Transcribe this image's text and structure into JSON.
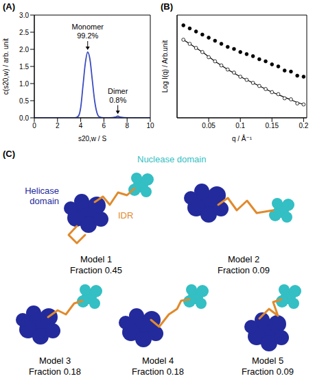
{
  "chart_data": [
    {
      "label": "(A)",
      "type": "line",
      "x_label": "s20,w / S",
      "y_label": "c(s20,w) / arb. unit",
      "x": [
        0,
        0.5,
        1,
        1.5,
        2,
        2.5,
        3,
        3.5,
        3.8,
        4.0,
        4.2,
        4.4,
        4.6,
        4.8,
        5.0,
        5.2,
        5.4,
        5.6,
        6,
        6.5,
        7.0,
        7.2,
        7.4,
        8,
        9,
        10
      ],
      "values": [
        0,
        0,
        0,
        0,
        0,
        0,
        0,
        0,
        0.05,
        0.3,
        0.95,
        1.6,
        1.92,
        1.7,
        1.1,
        0.5,
        0.15,
        0.03,
        0,
        0,
        0.02,
        0.05,
        0.02,
        0,
        0,
        0
      ],
      "color": "#3b4cc0",
      "xlim": [
        0,
        10
      ],
      "xticks": [
        0,
        2,
        4,
        6,
        8,
        10
      ],
      "ylim": [
        0,
        3
      ],
      "yticks": [
        {
          "value": 0,
          "label": "0.0"
        },
        {
          "value": 0.5,
          "label": "0.5"
        },
        {
          "value": 1,
          "label": "1.0"
        },
        {
          "value": 1.5,
          "label": "1.5"
        },
        {
          "value": 2,
          "label": "2.0"
        },
        {
          "value": 2.5,
          "label": "2.5"
        },
        {
          "value": 3,
          "label": "3.0"
        }
      ],
      "annotations": [
        {
          "x": 4.6,
          "lines": [
            "Monomer",
            "99.2%"
          ]
        },
        {
          "x": 7.2,
          "lines": [
            "Dimer",
            "0.8%"
          ]
        }
      ]
    },
    {
      "label": "(B)",
      "type": "scatter",
      "x_label": "q / Å⁻¹",
      "y_label": "Log I(q) / Arb.unit",
      "x": [
        0.01,
        0.02,
        0.03,
        0.04,
        0.05,
        0.06,
        0.07,
        0.08,
        0.09,
        0.1,
        0.11,
        0.12,
        0.13,
        0.14,
        0.15,
        0.16,
        0.17,
        0.18,
        0.19,
        0.2
      ],
      "series": [
        {
          "type": "scatter",
          "marker": "filled",
          "color": "#000000",
          "values": [
            9.0,
            8.7,
            8.4,
            8.1,
            7.8,
            7.5,
            7.2,
            6.9,
            6.7,
            6.4,
            6.2,
            6.0,
            5.7,
            5.5,
            5.2,
            5.0,
            4.6,
            4.5,
            4.1,
            4.0
          ]
        },
        {
          "type": "scatter",
          "marker": "open",
          "color": "#000000",
          "values": [
            7.6,
            7.2,
            6.8,
            6.4,
            5.9,
            5.5,
            5.1,
            4.7,
            4.4,
            4.0,
            3.7,
            3.4,
            3.1,
            2.8,
            2.5,
            2.3,
            1.9,
            1.8,
            1.4,
            1.3
          ]
        },
        {
          "type": "line",
          "line_style": "solid",
          "color": "#000000",
          "values": [
            7.6,
            7.2,
            6.8,
            6.4,
            5.95,
            5.5,
            5.1,
            4.7,
            4.35,
            4.0,
            3.7,
            3.4,
            3.1,
            2.8,
            2.5,
            2.25,
            2.0,
            1.75,
            1.5,
            1.3
          ]
        }
      ],
      "xlim": [
        0,
        0.205
      ],
      "xticks": [
        0.05,
        0.1,
        0.15,
        0.2
      ],
      "ylim": [
        0,
        10
      ],
      "tick_labels": "x"
    }
  ],
  "diagram": {
    "label": "(C)",
    "parts": [
      {
        "text": "Helicase domain",
        "color": "#232a9c"
      },
      {
        "text": "Nuclease domain",
        "color": "#33bfc4"
      },
      {
        "text": "IDR",
        "color": "#e08a2c"
      }
    ],
    "models": [
      {
        "title": "Model 1",
        "caption": "Fraction 0.45"
      },
      {
        "title": "Model 2",
        "caption": "Fraction 0.09"
      },
      {
        "title": "Model 3",
        "caption": "Fraction 0.18"
      },
      {
        "title": "Model 4",
        "caption": "Fraction 0.18"
      },
      {
        "title": "Model 5",
        "caption": "Fraction 0.09"
      }
    ]
  }
}
